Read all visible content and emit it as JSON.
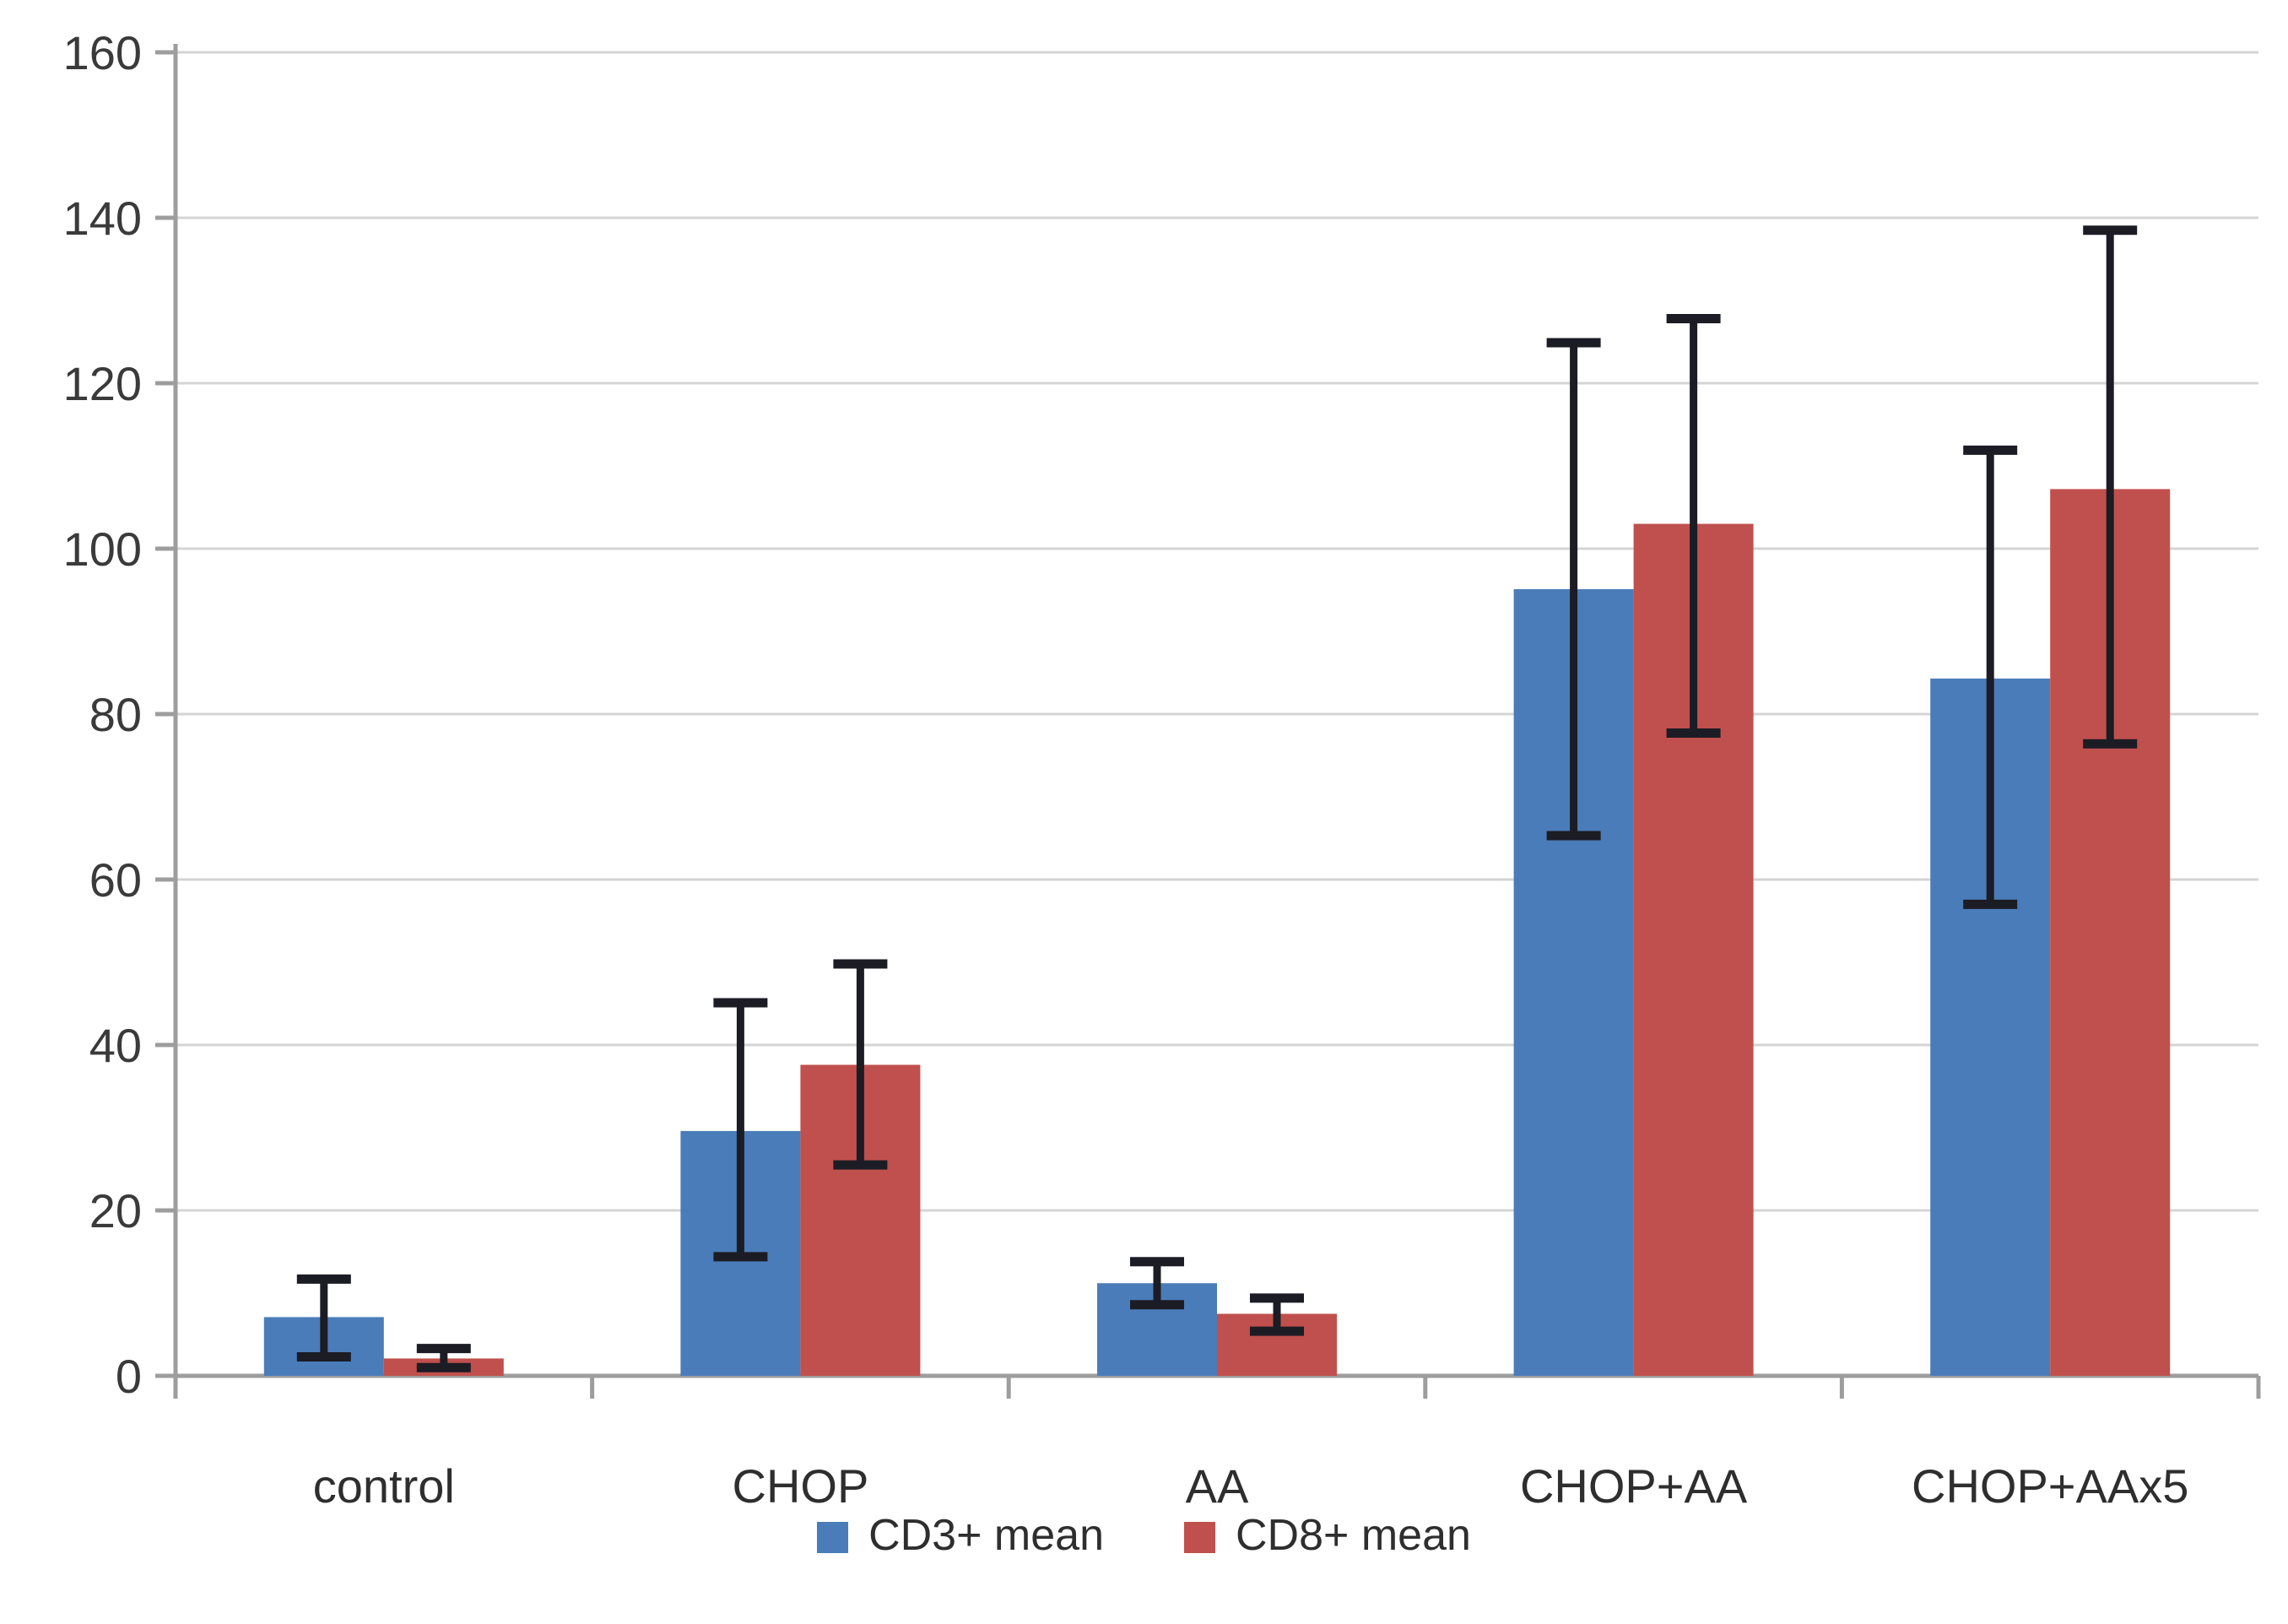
{
  "chart_data": {
    "type": "bar",
    "title": "",
    "xlabel": "",
    "ylabel": "",
    "categories": [
      "control",
      "CHOP",
      "AA",
      "CHOP+AA",
      "CHOP+AAx5"
    ],
    "series": [
      {
        "name": "CD3+ mean",
        "color": "#4a7cba",
        "values": [
          7.1,
          29.6,
          11.2,
          95.1,
          84.3
        ],
        "error_low": [
          2.3,
          14.4,
          8.6,
          65.3,
          57.0
        ],
        "error_high": [
          11.7,
          45.1,
          13.8,
          124.9,
          111.9
        ]
      },
      {
        "name": "CD8+ mean",
        "color": "#c0504d",
        "values": [
          2.1,
          37.6,
          7.5,
          103.0,
          107.2
        ],
        "error_low": [
          1.0,
          25.5,
          5.4,
          77.7,
          76.4
        ],
        "error_high": [
          3.3,
          49.8,
          9.4,
          127.8,
          138.5
        ]
      }
    ],
    "ylim": [
      0,
      160
    ],
    "y_tick_step": 20,
    "y_tick_labels": [
      "0",
      "20",
      "40",
      "60",
      "80",
      "100",
      "120",
      "140",
      "160"
    ],
    "grid": true,
    "legend_position": "bottom",
    "error_bars": true,
    "colors": {
      "gridline": "#d4d4d4",
      "axis": "#9d9d9d",
      "error_bar": "#1c1c24",
      "tick_text": "#3a3a3a",
      "category_text": "#2e2e2e"
    }
  },
  "legend": {
    "items": [
      {
        "label": "CD3+ mean"
      },
      {
        "label": "CD8+ mean"
      }
    ]
  }
}
